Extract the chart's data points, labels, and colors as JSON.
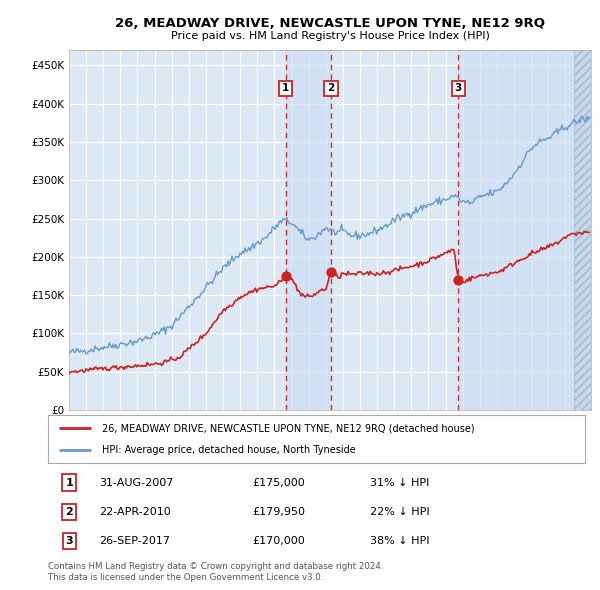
{
  "title": "26, MEADWAY DRIVE, NEWCASTLE UPON TYNE, NE12 9RQ",
  "subtitle": "Price paid vs. HM Land Registry's House Price Index (HPI)",
  "legend_line1": "26, MEADWAY DRIVE, NEWCASTLE UPON TYNE, NE12 9RQ (detached house)",
  "legend_line2": "HPI: Average price, detached house, North Tyneside",
  "footnote1": "Contains HM Land Registry data © Crown copyright and database right 2024.",
  "footnote2": "This data is licensed under the Open Government Licence v3.0.",
  "transactions": [
    {
      "label": "1",
      "date": "31-AUG-2007",
      "price": "£175,000",
      "pct": "31% ↓ HPI",
      "year": 2007.667,
      "dot_price": 175000
    },
    {
      "label": "2",
      "date": "22-APR-2010",
      "price": "£179,950",
      "pct": "22% ↓ HPI",
      "year": 2010.31,
      "dot_price": 179950
    },
    {
      "label": "3",
      "date": "26-SEP-2017",
      "price": "£170,000",
      "pct": "38% ↓ HPI",
      "year": 2017.74,
      "dot_price": 170000
    }
  ],
  "hpi_color": "#6699cc",
  "price_color": "#cc2222",
  "plot_bg": "#dce9f5",
  "ylim": [
    0,
    470000
  ],
  "xlim_start": 1995.0,
  "xlim_end": 2025.5,
  "hatch_start": 2024.5,
  "title_fontsize": 9.5,
  "subtitle_fontsize": 8.0
}
